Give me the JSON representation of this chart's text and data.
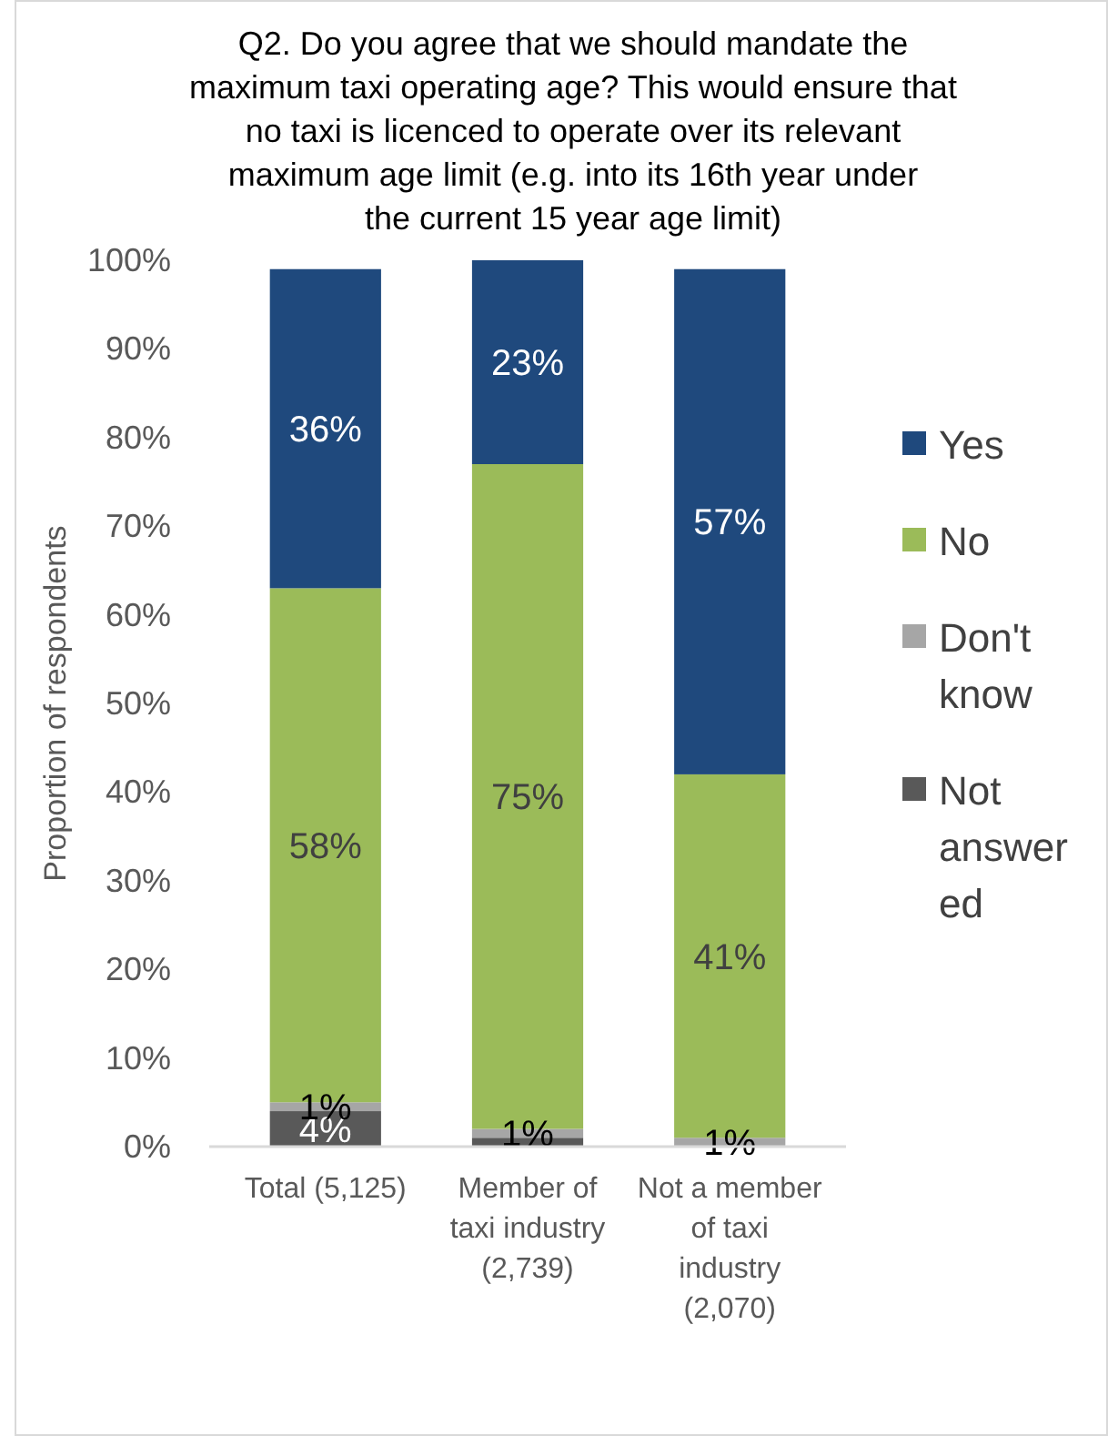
{
  "chart_data": {
    "type": "bar",
    "stacked": true,
    "title": "Q2. Do you agree that we should mandate the maximum taxi operating age? This would ensure that no taxi is licenced to operate over its relevant maximum age limit (e.g. into its 16th year under the current 15 year age limit)",
    "ylabel": "Proportion of respondents",
    "categories": [
      "Total (5,125)",
      "Member of taxi industry (2,739)",
      "Not a member of taxi industry (2,070)"
    ],
    "series": [
      {
        "name": "Not answered",
        "color": "#595959",
        "values": [
          4,
          1,
          0
        ],
        "value_labels": [
          "4%",
          null,
          null
        ]
      },
      {
        "name": "Don't know",
        "color": "#a6a6a6",
        "values": [
          1,
          1,
          1
        ],
        "value_labels": [
          "1%",
          "1%",
          "1%"
        ]
      },
      {
        "name": "No",
        "color": "#9bbb59",
        "values": [
          58,
          75,
          41
        ],
        "value_labels": [
          "58%",
          "75%",
          "41%"
        ]
      },
      {
        "name": "Yes",
        "color": "#1f497d",
        "values": [
          36,
          23,
          57
        ],
        "value_labels": [
          "36%",
          "23%",
          "57%"
        ]
      }
    ],
    "ylim": [
      0,
      100
    ],
    "yticks": [
      {
        "value": 0,
        "label": "0%"
      },
      {
        "value": 10,
        "label": "10%"
      },
      {
        "value": 20,
        "label": "20%"
      },
      {
        "value": 30,
        "label": "30%"
      },
      {
        "value": 40,
        "label": "40%"
      },
      {
        "value": 50,
        "label": "50%"
      },
      {
        "value": 60,
        "label": "60%"
      },
      {
        "value": 70,
        "label": "70%"
      },
      {
        "value": 80,
        "label": "80%"
      },
      {
        "value": 90,
        "label": "90%"
      },
      {
        "value": 100,
        "label": "100%"
      }
    ],
    "grid": false,
    "legend": "right"
  }
}
